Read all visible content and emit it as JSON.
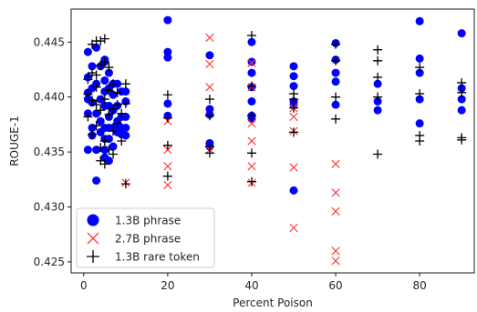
{
  "chart_data": {
    "type": "scatter",
    "title": "",
    "xlabel": "Percent Poison",
    "ylabel": "ROUGE-1",
    "xlim": [
      -3,
      93
    ],
    "ylim": [
      0.424,
      0.448
    ],
    "xticks": [
      0,
      20,
      40,
      60,
      80
    ],
    "xtick_labels": [
      "0",
      "20",
      "40",
      "60",
      "80"
    ],
    "yticks": [
      0.425,
      0.43,
      0.435,
      0.44,
      0.445
    ],
    "ytick_labels": [
      "0.425",
      "0.430",
      "0.435",
      "0.440",
      "0.445"
    ],
    "grid": false,
    "legend_position": "lower-left",
    "series": [
      {
        "name": "1.3B phrase",
        "marker": "circle",
        "color": "#0000ff",
        "points": [
          [
            1,
            0.4441
          ],
          [
            1,
            0.4418
          ],
          [
            1,
            0.4404
          ],
          [
            1,
            0.4398
          ],
          [
            1,
            0.4385
          ],
          [
            1,
            0.4352
          ],
          [
            2,
            0.4428
          ],
          [
            2,
            0.4408
          ],
          [
            2,
            0.4395
          ],
          [
            2,
            0.4372
          ],
          [
            2,
            0.4365
          ],
          [
            3,
            0.4445
          ],
          [
            3,
            0.4412
          ],
          [
            3,
            0.4385
          ],
          [
            3,
            0.4352
          ],
          [
            3,
            0.4324
          ],
          [
            4,
            0.4428
          ],
          [
            4,
            0.4398
          ],
          [
            4,
            0.4378
          ],
          [
            4,
            0.4368
          ],
          [
            5,
            0.4434
          ],
          [
            5,
            0.4432
          ],
          [
            5,
            0.4415
          ],
          [
            5,
            0.4405
          ],
          [
            5,
            0.4392
          ],
          [
            5,
            0.4372
          ],
          [
            5,
            0.4362
          ],
          [
            5,
            0.4352
          ],
          [
            5,
            0.4345
          ],
          [
            6,
            0.4422
          ],
          [
            6,
            0.4408
          ],
          [
            6,
            0.4392
          ],
          [
            6,
            0.4382
          ],
          [
            6,
            0.4372
          ],
          [
            6,
            0.4362
          ],
          [
            6,
            0.4342
          ],
          [
            7,
            0.4412
          ],
          [
            7,
            0.4402
          ],
          [
            7,
            0.4388
          ],
          [
            7,
            0.4372
          ],
          [
            7,
            0.4355
          ],
          [
            8,
            0.4412
          ],
          [
            8,
            0.4392
          ],
          [
            8,
            0.4378
          ],
          [
            8,
            0.4368
          ],
          [
            9,
            0.4405
          ],
          [
            9,
            0.4382
          ],
          [
            9,
            0.4372
          ],
          [
            9,
            0.4366
          ],
          [
            10,
            0.4405
          ],
          [
            10,
            0.4396
          ],
          [
            10,
            0.4382
          ],
          [
            10,
            0.4372
          ],
          [
            10,
            0.4365
          ],
          [
            20,
            0.447
          ],
          [
            20,
            0.4441
          ],
          [
            20,
            0.4436
          ],
          [
            20,
            0.4394
          ],
          [
            20,
            0.4383
          ],
          [
            30,
            0.4438
          ],
          [
            30,
            0.4389
          ],
          [
            30,
            0.4384
          ],
          [
            30,
            0.4358
          ],
          [
            30,
            0.4355
          ],
          [
            40,
            0.445
          ],
          [
            40,
            0.4432
          ],
          [
            40,
            0.4422
          ],
          [
            40,
            0.4409
          ],
          [
            40,
            0.4396
          ],
          [
            40,
            0.4383
          ],
          [
            40,
            0.438
          ],
          [
            50,
            0.4428
          ],
          [
            50,
            0.4419
          ],
          [
            50,
            0.441
          ],
          [
            50,
            0.4396
          ],
          [
            50,
            0.4393
          ],
          [
            50,
            0.4315
          ],
          [
            60,
            0.4449
          ],
          [
            60,
            0.4434
          ],
          [
            60,
            0.4422
          ],
          [
            60,
            0.4414
          ],
          [
            60,
            0.4393
          ],
          [
            70,
            0.4412
          ],
          [
            70,
            0.4396
          ],
          [
            70,
            0.4388
          ],
          [
            80,
            0.4469
          ],
          [
            80,
            0.4435
          ],
          [
            80,
            0.4422
          ],
          [
            80,
            0.4398
          ],
          [
            80,
            0.4376
          ],
          [
            90,
            0.4458
          ],
          [
            90,
            0.4408
          ],
          [
            90,
            0.4398
          ],
          [
            90,
            0.4388
          ]
        ]
      },
      {
        "name": "2.7B phrase",
        "marker": "x",
        "color": "#ff3b3b",
        "points": [
          [
            10,
            0.4322
          ],
          [
            20,
            0.4378
          ],
          [
            20,
            0.4352
          ],
          [
            20,
            0.4337
          ],
          [
            20,
            0.432
          ],
          [
            30,
            0.4454
          ],
          [
            30,
            0.443
          ],
          [
            30,
            0.4409
          ],
          [
            30,
            0.4352
          ],
          [
            40,
            0.4431
          ],
          [
            40,
            0.4409
          ],
          [
            40,
            0.4376
          ],
          [
            40,
            0.436
          ],
          [
            40,
            0.4337
          ],
          [
            40,
            0.4322
          ],
          [
            50,
            0.439
          ],
          [
            50,
            0.4382
          ],
          [
            50,
            0.4369
          ],
          [
            50,
            0.4336
          ],
          [
            50,
            0.4281
          ],
          [
            60,
            0.4339
          ],
          [
            60,
            0.4313
          ],
          [
            60,
            0.4296
          ],
          [
            60,
            0.426
          ],
          [
            60,
            0.4251
          ]
        ]
      },
      {
        "name": "1.3B rare token",
        "marker": "plus",
        "color": "#000000",
        "points": [
          [
            1,
            0.4416
          ],
          [
            1,
            0.4403
          ],
          [
            1,
            0.4382
          ],
          [
            2,
            0.4448
          ],
          [
            2,
            0.4422
          ],
          [
            2,
            0.4397
          ],
          [
            2,
            0.4366
          ],
          [
            3,
            0.4451
          ],
          [
            3,
            0.442
          ],
          [
            3,
            0.4409
          ],
          [
            3,
            0.4393
          ],
          [
            3,
            0.4374
          ],
          [
            4,
            0.4451
          ],
          [
            4,
            0.4429
          ],
          [
            4,
            0.4388
          ],
          [
            4,
            0.4354
          ],
          [
            4,
            0.4342
          ],
          [
            5,
            0.4453
          ],
          [
            5,
            0.4432
          ],
          [
            5,
            0.4398
          ],
          [
            5,
            0.436
          ],
          [
            5,
            0.4339
          ],
          [
            6,
            0.4427
          ],
          [
            6,
            0.4406
          ],
          [
            6,
            0.4384
          ],
          [
            6,
            0.4352
          ],
          [
            7,
            0.4412
          ],
          [
            7,
            0.4389
          ],
          [
            7,
            0.4369
          ],
          [
            7,
            0.4348
          ],
          [
            8,
            0.4404
          ],
          [
            8,
            0.4393
          ],
          [
            8,
            0.4376
          ],
          [
            9,
            0.4385
          ],
          [
            9,
            0.436
          ],
          [
            10,
            0.4412
          ],
          [
            10,
            0.4394
          ],
          [
            10,
            0.4321
          ],
          [
            20,
            0.4402
          ],
          [
            20,
            0.4381
          ],
          [
            20,
            0.4356
          ],
          [
            20,
            0.4328
          ],
          [
            30,
            0.4398
          ],
          [
            30,
            0.4383
          ],
          [
            30,
            0.4355
          ],
          [
            30,
            0.4349
          ],
          [
            40,
            0.4456
          ],
          [
            40,
            0.441
          ],
          [
            40,
            0.4383
          ],
          [
            40,
            0.4349
          ],
          [
            40,
            0.4323
          ],
          [
            50,
            0.4403
          ],
          [
            50,
            0.4398
          ],
          [
            50,
            0.439
          ],
          [
            50,
            0.4368
          ],
          [
            60,
            0.4448
          ],
          [
            60,
            0.4433
          ],
          [
            60,
            0.44
          ],
          [
            60,
            0.438
          ],
          [
            70,
            0.4443
          ],
          [
            70,
            0.4433
          ],
          [
            70,
            0.4418
          ],
          [
            70,
            0.44
          ],
          [
            70,
            0.4348
          ],
          [
            80,
            0.4427
          ],
          [
            80,
            0.4403
          ],
          [
            80,
            0.4365
          ],
          [
            80,
            0.436
          ],
          [
            90,
            0.4413
          ],
          [
            90,
            0.4404
          ],
          [
            90,
            0.4363
          ],
          [
            90,
            0.4361
          ]
        ]
      }
    ]
  }
}
